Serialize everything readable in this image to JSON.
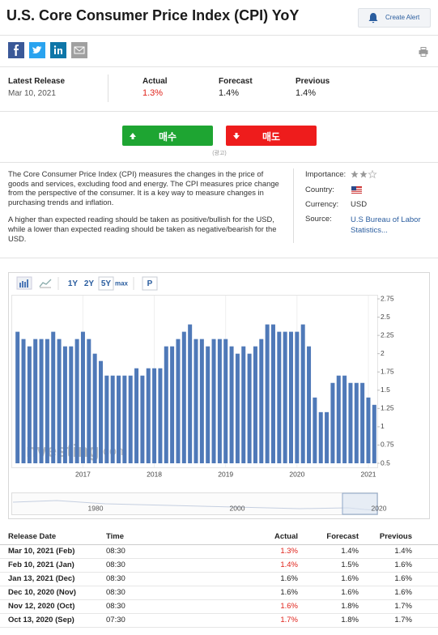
{
  "header": {
    "title": "U.S. Core Consumer Price Index (CPI) YoY",
    "alert_button": "Create Alert"
  },
  "latest_release": {
    "labels": [
      "Latest Release",
      "Actual",
      "Forecast",
      "Previous"
    ],
    "values": [
      "Mar 10, 2021",
      "1.3%",
      "1.4%",
      "1.4%"
    ],
    "actual_color": "#e0231b"
  },
  "trade_buttons": {
    "buy": "매수",
    "sell": "매도",
    "ad_note": "(광고)"
  },
  "description": [
    "The Core Consumer Price Index (CPI) measures the changes in the price of goods and services, excluding food and energy. The CPI measures price change from the perspective of the consumer. It is a key way to measure changes in purchasing trends and inflation.",
    "A higher than expected reading should be taken as positive/bullish for the USD, while a lower than expected reading should be taken as negative/bearish for the USD."
  ],
  "info": {
    "labels": [
      "Importance:",
      "Country:",
      "Currency:",
      "Source:"
    ],
    "currency": "USD",
    "source": "U.S Bureau of Labor Statistics..."
  },
  "toolbar": [
    "1Y",
    "2Y",
    "5Y",
    "max",
    "P"
  ],
  "chart_data": {
    "type": "bar",
    "color": "#4f79b8",
    "categories": [
      null,
      null,
      null,
      null,
      null,
      null,
      null,
      null,
      null,
      null,
      null,
      "2017",
      null,
      null,
      null,
      null,
      null,
      null,
      null,
      null,
      null,
      null,
      null,
      "2018",
      null,
      null,
      null,
      null,
      null,
      null,
      null,
      null,
      null,
      null,
      null,
      "2019",
      null,
      null,
      null,
      null,
      null,
      null,
      null,
      null,
      null,
      null,
      null,
      "2020",
      null,
      null,
      null,
      null,
      null,
      null,
      null,
      null,
      null,
      null,
      null,
      "2021",
      null
    ],
    "values": [
      2.3,
      2.2,
      2.1,
      2.2,
      2.2,
      2.2,
      2.3,
      2.2,
      2.1,
      2.1,
      2.2,
      2.3,
      2.2,
      2.0,
      1.9,
      1.7,
      1.7,
      1.7,
      1.7,
      1.7,
      1.8,
      1.7,
      1.8,
      1.8,
      1.8,
      2.1,
      2.1,
      2.2,
      2.3,
      2.4,
      2.2,
      2.2,
      2.1,
      2.2,
      2.2,
      2.2,
      2.1,
      2.0,
      2.1,
      2.0,
      2.1,
      2.2,
      2.4,
      2.4,
      2.3,
      2.3,
      2.3,
      2.3,
      2.4,
      2.1,
      1.4,
      1.2,
      1.2,
      1.6,
      1.7,
      1.7,
      1.6,
      1.6,
      1.6,
      1.4,
      1.3
    ],
    "ylim": [
      0.5,
      2.75
    ],
    "yticks": [
      0.5,
      0.75,
      1,
      1.25,
      1.5,
      1.75,
      2,
      2.25,
      2.5,
      2.75
    ],
    "axis_side": "right",
    "watermark": [
      "Investing",
      ".com"
    ]
  },
  "navigator": {
    "labels": [
      "1980",
      "2000",
      "2020"
    ]
  },
  "table": {
    "header": [
      "Release Date",
      "Time",
      "Actual",
      "Forecast",
      "Previous"
    ],
    "rows": [
      [
        "Mar 10, 2021 (Feb)",
        "08:30",
        "1.3%",
        "1.4%",
        "1.4%"
      ],
      [
        "Feb 10, 2021 (Jan)",
        "08:30",
        "1.4%",
        "1.5%",
        "1.6%"
      ],
      [
        "Jan 13, 2021 (Dec)",
        "08:30",
        "1.6%",
        "1.6%",
        "1.6%"
      ],
      [
        "Dec 10, 2020 (Nov)",
        "08:30",
        "1.6%",
        "1.6%",
        "1.6%"
      ],
      [
        "Nov 12, 2020 (Oct)",
        "08:30",
        "1.6%",
        "1.8%",
        "1.7%"
      ],
      [
        "Oct 13, 2020 (Sep)",
        "07:30",
        "1.7%",
        "1.8%",
        "1.7%"
      ]
    ],
    "actual_colors": [
      "#e0231b",
      "#e0231b",
      "#222222",
      "#222222",
      "#e0231b",
      "#e0231b"
    ]
  }
}
